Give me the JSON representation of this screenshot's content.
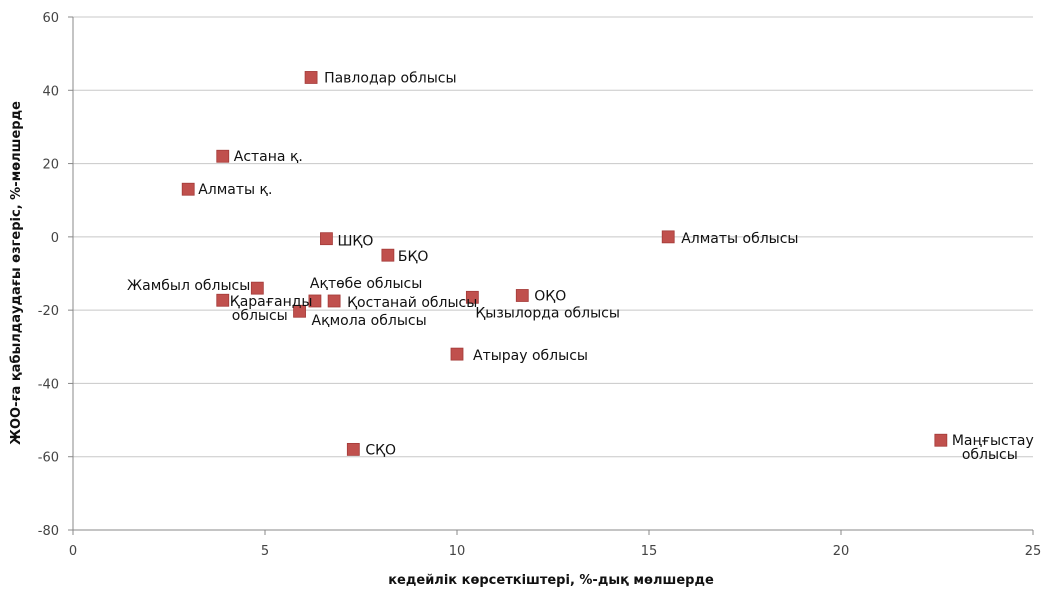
{
  "chart_data": {
    "type": "scatter",
    "title": "",
    "xlabel": "кедейлік көрсеткіштері, %-дық мөлшерде",
    "ylabel": "ЖОО-ға қабылдаудағы өзгеріс, %-мөлшерде",
    "xlim": [
      0,
      25
    ],
    "ylim": [
      -80,
      60
    ],
    "xticks": [
      0,
      5,
      10,
      15,
      20,
      25
    ],
    "yticks": [
      -80,
      -60,
      -40,
      -20,
      0,
      20,
      40,
      60
    ],
    "grid": "horizontal",
    "legend": "none",
    "marker_color": "#c0504d",
    "points": [
      {
        "label": "Павлодар облысы",
        "x": 6.2,
        "y": 43.5
      },
      {
        "label": "Астана қ.",
        "x": 3.9,
        "y": 22
      },
      {
        "label": "Алматы қ.",
        "x": 3.0,
        "y": 13
      },
      {
        "label": "ШҚО",
        "x": 6.6,
        "y": -0.5
      },
      {
        "label": "Алматы облысы",
        "x": 15.5,
        "y": 0
      },
      {
        "label": "БҚО",
        "x": 8.2,
        "y": -5
      },
      {
        "label": "Жамбыл облысы",
        "x": 4.8,
        "y": -14
      },
      {
        "label": "Ақтөбе облысы",
        "x": 6.3,
        "y": -17.5
      },
      {
        "label": "Қостанай облысы",
        "x": 6.8,
        "y": -17.5
      },
      {
        "label": "Қарағанды облысы",
        "x": 3.9,
        "y": -17.3
      },
      {
        "label": "Ақмола облысы",
        "x": 5.9,
        "y": -20.3
      },
      {
        "label": "Қызылорда облысы",
        "x": 10.4,
        "y": -16.5
      },
      {
        "label": "ОҚО",
        "x": 11.7,
        "y": -16
      },
      {
        "label": "Атырау облысы",
        "x": 10.0,
        "y": -32
      },
      {
        "label": "СҚО",
        "x": 7.3,
        "y": -58
      },
      {
        "label": "Маңғыстау облысы",
        "x": 22.6,
        "y": -55.5
      }
    ]
  }
}
